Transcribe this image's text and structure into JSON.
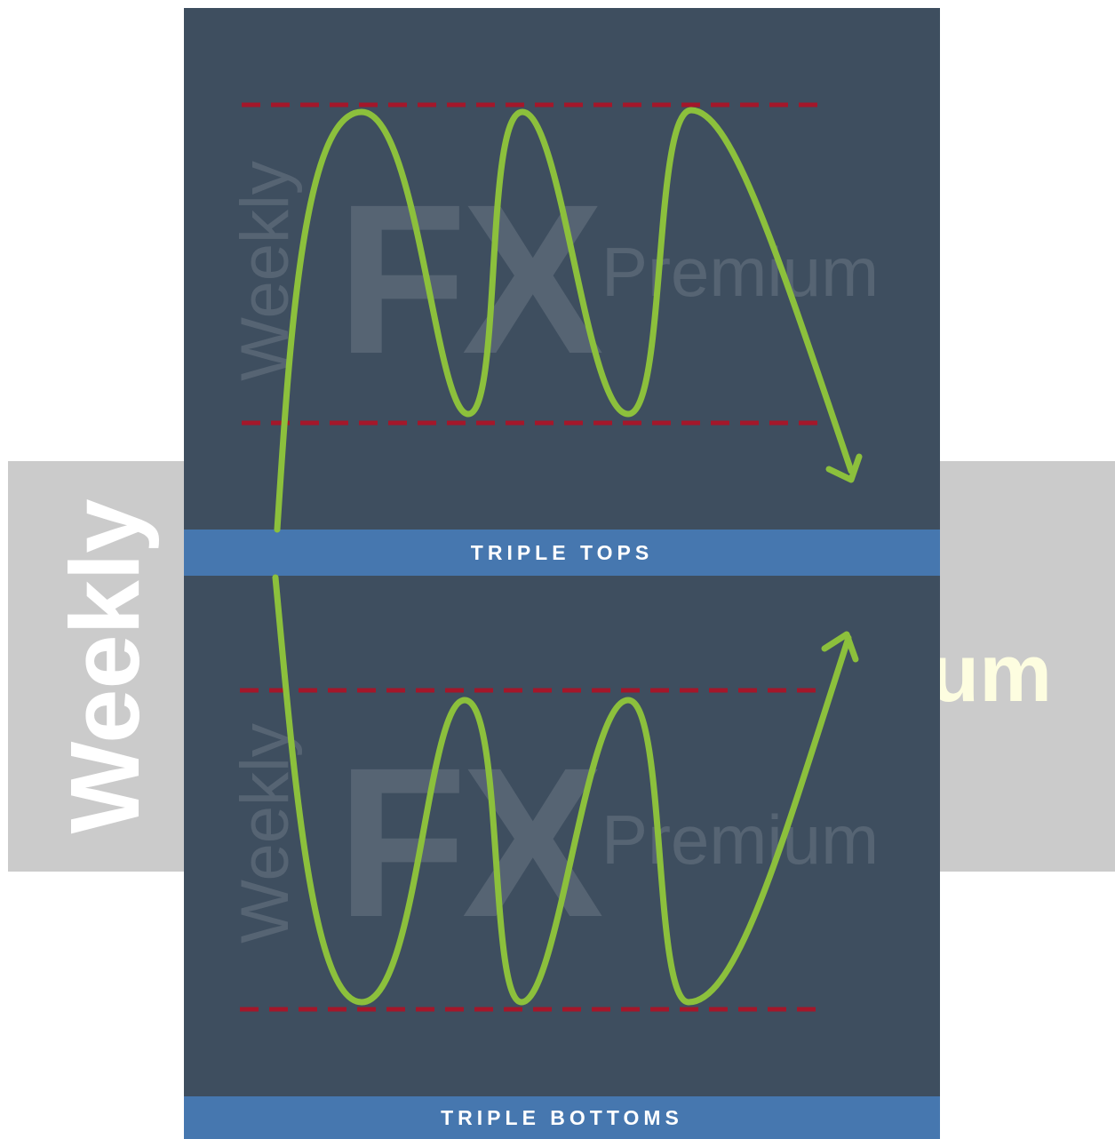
{
  "background": {
    "left_text": "Weekly",
    "right_text": "um"
  },
  "panels": [
    {
      "watermark": {
        "weekly": "Weekly",
        "fx": "FX",
        "premium": "Premium"
      },
      "label": "TRIPLE TOPS"
    },
    {
      "watermark": {
        "weekly": "Weekly",
        "fx": "FX",
        "premium": "Premium"
      },
      "label": "TRIPLE BOTTOMS"
    }
  ],
  "colors": {
    "panel": "#3e4e5f",
    "label_bar": "#4677af",
    "price_line": "#8cc03c",
    "level_line": "#a4172a",
    "banner": "#cbcbcb"
  }
}
